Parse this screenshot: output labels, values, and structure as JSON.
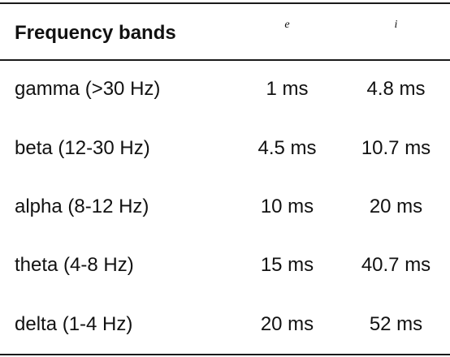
{
  "table": {
    "headers": [
      "Frequency bands",
      "e",
      "i"
    ],
    "rows": [
      {
        "band": "gamma (>30 Hz)",
        "e": "1 ms",
        "i": "4.8 ms"
      },
      {
        "band": "beta (12-30 Hz)",
        "e": "4.5 ms",
        "i": "10.7 ms"
      },
      {
        "band": "alpha (8-12 Hz)",
        "e": "10 ms",
        "i": "20 ms"
      },
      {
        "band": "theta (4-8 Hz)",
        "e": "15 ms",
        "i": "40.7 ms"
      },
      {
        "band": "delta (1-4 Hz)",
        "e": "20 ms",
        "i": "52 ms"
      }
    ]
  }
}
